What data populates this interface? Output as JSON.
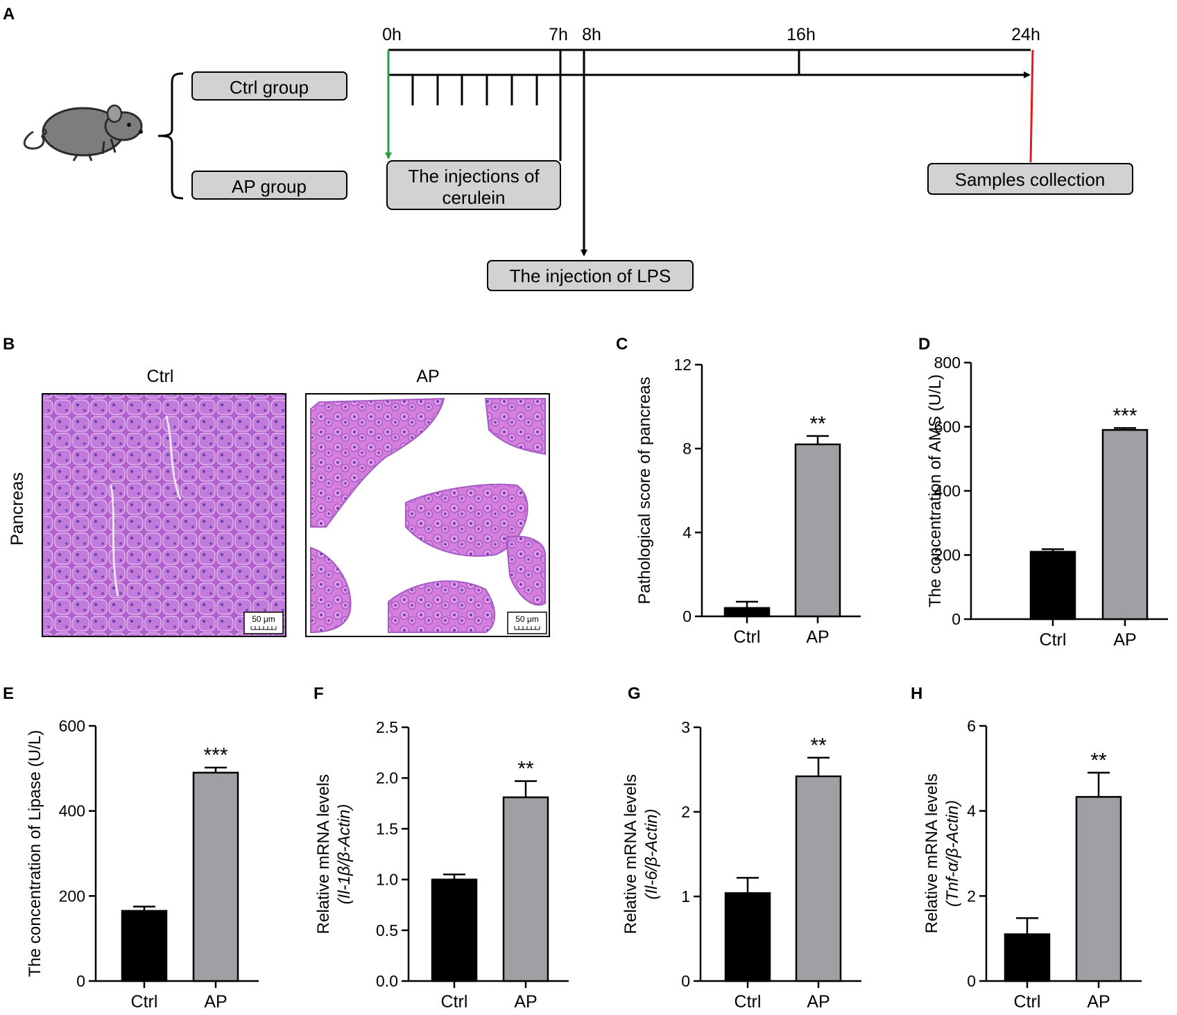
{
  "panels": {
    "A": "A",
    "B": "B",
    "C": "C",
    "D": "D",
    "E": "E",
    "F": "F",
    "G": "G",
    "H": "H"
  },
  "timeline": {
    "times": [
      "0h",
      "7h",
      "8h",
      "16h",
      "24h"
    ],
    "groups": [
      "Ctrl group",
      "AP group"
    ],
    "events": {
      "cerulein": [
        "The injections of",
        "cerulein"
      ],
      "lps": "The injection of LPS",
      "samples": "Samples collection"
    },
    "colors": {
      "start": "#1fa33c",
      "end": "#e31a1c",
      "axis": "#000000"
    }
  },
  "histology": {
    "row_label": "Pancreas",
    "columns": [
      "Ctrl",
      "AP"
    ],
    "scale_bar": "50 μm",
    "colors": {
      "tissue": "#b35fce",
      "cell": "#c97ae0",
      "nucleus": "#6a3fb1",
      "background": "#ffffff"
    }
  },
  "chart_data": [
    {
      "panel": "C",
      "type": "bar",
      "categories": [
        "Ctrl",
        "AP"
      ],
      "values": [
        0.4,
        8.2
      ],
      "errors": [
        0.3,
        0.4
      ],
      "ylim": [
        0,
        12
      ],
      "yticks": [
        "0",
        "4",
        "8",
        "12"
      ],
      "ylabel": [
        "Pathological score of pancreas"
      ],
      "significance": [
        "",
        "**"
      ],
      "colors": [
        "#000000",
        "#a0a0a4"
      ]
    },
    {
      "panel": "D",
      "type": "bar",
      "categories": [
        "Ctrl",
        "AP"
      ],
      "values": [
        210,
        590
      ],
      "errors": [
        8,
        6
      ],
      "ylim": [
        0,
        800
      ],
      "yticks": [
        "0",
        "200",
        "400",
        "600",
        "800"
      ],
      "ylabel": [
        "The concentration of AMS (U/L)"
      ],
      "significance": [
        "",
        "***"
      ],
      "colors": [
        "#000000",
        "#a0a0a4"
      ]
    },
    {
      "panel": "E",
      "type": "bar",
      "categories": [
        "Ctrl",
        "AP"
      ],
      "values": [
        165,
        490
      ],
      "errors": [
        10,
        12
      ],
      "ylim": [
        0,
        600
      ],
      "yticks": [
        "0",
        "200",
        "400",
        "600"
      ],
      "ylabel": [
        "The concentration of Lipase (U/L)"
      ],
      "significance": [
        "",
        "***"
      ],
      "colors": [
        "#000000",
        "#a0a0a4"
      ]
    },
    {
      "panel": "F",
      "type": "bar",
      "categories": [
        "Ctrl",
        "AP"
      ],
      "values": [
        1.0,
        1.81
      ],
      "errors": [
        0.05,
        0.16
      ],
      "ylim": [
        0,
        2.5
      ],
      "yticks": [
        "0.0",
        "0.5",
        "1.0",
        "1.5",
        "2.0",
        "2.5"
      ],
      "ylabel": [
        "Relative mRNA levels",
        "(Il-1β/β-Actin)"
      ],
      "significance": [
        "",
        "**"
      ],
      "colors": [
        "#000000",
        "#a0a0a4"
      ]
    },
    {
      "panel": "G",
      "type": "bar",
      "categories": [
        "Ctrl",
        "AP"
      ],
      "values": [
        1.04,
        2.42
      ],
      "errors": [
        0.18,
        0.22
      ],
      "ylim": [
        0,
        3
      ],
      "yticks": [
        "0",
        "1",
        "2",
        "3"
      ],
      "ylabel": [
        "Relative mRNA levels",
        "(Il-6/β-Actin)"
      ],
      "significance": [
        "",
        "**"
      ],
      "colors": [
        "#000000",
        "#a0a0a4"
      ]
    },
    {
      "panel": "H",
      "type": "bar",
      "categories": [
        "Ctrl",
        "AP"
      ],
      "values": [
        1.1,
        4.33
      ],
      "errors": [
        0.38,
        0.57
      ],
      "ylim": [
        0,
        6
      ],
      "yticks": [
        "0",
        "2",
        "4",
        "6"
      ],
      "ylabel": [
        "Relative mRNA levels",
        "(Tnf-α/β-Actin)"
      ],
      "significance": [
        "",
        "**"
      ],
      "colors": [
        "#000000",
        "#a0a0a4"
      ]
    }
  ]
}
